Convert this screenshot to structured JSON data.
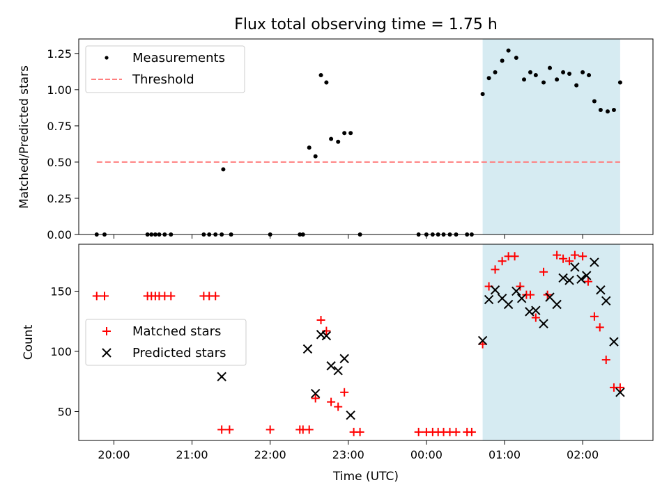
{
  "chart_data": [
    {
      "type": "scatter",
      "title": "Flux total observing time = 1.75 h",
      "ylabel": "Matched/Predicted stars",
      "xlabel": "",
      "xlim": [
        19.55,
        26.9
      ],
      "ylim": [
        0,
        1.35
      ],
      "x_ticks": [
        20,
        21,
        22,
        23,
        24,
        25,
        26
      ],
      "y_ticks": [
        0.0,
        0.25,
        0.5,
        0.75,
        1.0,
        1.25
      ],
      "y_tick_labels": [
        "0.00",
        "0.25",
        "0.50",
        "0.75",
        "1.00",
        "1.25"
      ],
      "shaded_span": {
        "x0": 24.72,
        "x1": 26.48,
        "color": "#add8e6"
      },
      "legend": "upper-left",
      "series": [
        {
          "name": "Measurements",
          "kind": "scatter",
          "marker": "dot",
          "color": "#000000",
          "x": [
            19.78,
            19.88,
            20.43,
            20.48,
            20.53,
            20.58,
            20.65,
            20.73,
            21.15,
            21.22,
            21.3,
            21.38,
            21.4,
            21.5,
            22.0,
            22.38,
            22.42,
            22.5,
            22.58,
            22.65,
            22.72,
            22.78,
            22.87,
            22.95,
            23.03,
            23.15,
            23.9,
            24.0,
            24.08,
            24.15,
            24.22,
            24.3,
            24.38,
            24.52,
            24.58,
            24.72,
            24.8,
            24.88,
            24.97,
            25.05,
            25.15,
            25.25,
            25.33,
            25.4,
            25.5,
            25.58,
            25.67,
            25.75,
            25.83,
            25.92,
            26.0,
            26.08,
            26.15,
            26.23,
            26.32,
            26.4,
            26.48
          ],
          "y": [
            0,
            0,
            0,
            0,
            0,
            0,
            0,
            0,
            0,
            0,
            0,
            0,
            0.45,
            0,
            0,
            0,
            0,
            0.6,
            0.54,
            1.1,
            1.05,
            0.66,
            0.64,
            0.7,
            0.7,
            0,
            0,
            0,
            0,
            0,
            0,
            0,
            0,
            0,
            0,
            0.97,
            1.08,
            1.12,
            1.2,
            1.27,
            1.22,
            1.07,
            1.12,
            1.1,
            1.05,
            1.15,
            1.07,
            1.12,
            1.11,
            1.03,
            1.12,
            1.1,
            0.92,
            0.86,
            0.85,
            0.86,
            1.05
          ]
        },
        {
          "name": "Threshold",
          "kind": "line",
          "style": "dashed",
          "color": "#ff7f7f",
          "x": [
            19.78,
            26.48
          ],
          "y": [
            0.5,
            0.5
          ]
        }
      ]
    },
    {
      "type": "scatter",
      "title": "",
      "ylabel": "Count",
      "xlabel": "Time (UTC)",
      "xlim": [
        19.55,
        26.9
      ],
      "ylim": [
        26,
        189
      ],
      "x_ticks": [
        20,
        21,
        22,
        23,
        24,
        25,
        26
      ],
      "x_tick_labels": [
        "20:00",
        "21:00",
        "22:00",
        "23:00",
        "00:00",
        "01:00",
        "02:00"
      ],
      "y_ticks": [
        50,
        100,
        150
      ],
      "y_tick_labels": [
        "50",
        "100",
        "150"
      ],
      "shaded_span": {
        "x0": 24.72,
        "x1": 26.48,
        "color": "#add8e6"
      },
      "legend": "center-left",
      "series": [
        {
          "name": "Matched stars",
          "kind": "scatter",
          "marker": "plus",
          "color": "#ff0000",
          "x": [
            19.78,
            19.88,
            20.43,
            20.48,
            20.53,
            20.58,
            20.65,
            20.73,
            21.15,
            21.22,
            21.3,
            21.38,
            21.48,
            22.0,
            22.38,
            22.42,
            22.5,
            22.58,
            22.65,
            22.72,
            22.78,
            22.87,
            22.95,
            23.07,
            23.15,
            23.9,
            24.0,
            24.08,
            24.15,
            24.22,
            24.3,
            24.38,
            24.52,
            24.58,
            24.72,
            24.8,
            24.88,
            24.97,
            25.05,
            25.13,
            25.2,
            25.28,
            25.33,
            25.4,
            25.5,
            25.55,
            25.67,
            25.75,
            25.83,
            25.9,
            26.0,
            26.07,
            26.15,
            26.22,
            26.3,
            26.4,
            26.48
          ],
          "y": [
            146,
            146,
            146,
            146,
            146,
            146,
            146,
            146,
            146,
            146,
            146,
            35,
            35,
            35,
            35,
            35,
            35,
            61,
            126,
            117,
            58,
            54,
            66,
            33,
            33,
            33,
            33,
            33,
            33,
            33,
            33,
            33,
            33,
            33,
            106,
            154,
            168,
            175,
            179,
            179,
            154,
            147,
            147,
            128,
            166,
            147,
            180,
            177,
            175,
            180,
            179,
            158,
            129,
            120,
            93,
            70,
            70
          ]
        },
        {
          "name": "Predicted stars",
          "kind": "scatter",
          "marker": "x",
          "color": "#000000",
          "x": [
            21.38,
            22.48,
            22.58,
            22.65,
            22.72,
            22.78,
            22.87,
            22.95,
            23.03,
            24.72,
            24.8,
            24.88,
            24.97,
            25.05,
            25.15,
            25.22,
            25.32,
            25.4,
            25.5,
            25.58,
            25.67,
            25.75,
            25.83,
            25.9,
            25.98,
            26.05,
            26.15,
            26.23,
            26.3,
            26.4,
            26.48
          ],
          "y": [
            79,
            102,
            65,
            114,
            113,
            88,
            84,
            94,
            47,
            109,
            143,
            151,
            144,
            139,
            150,
            144,
            133,
            134,
            123,
            145,
            139,
            161,
            159,
            170,
            160,
            163,
            174,
            151,
            142,
            108,
            66
          ]
        }
      ]
    }
  ]
}
